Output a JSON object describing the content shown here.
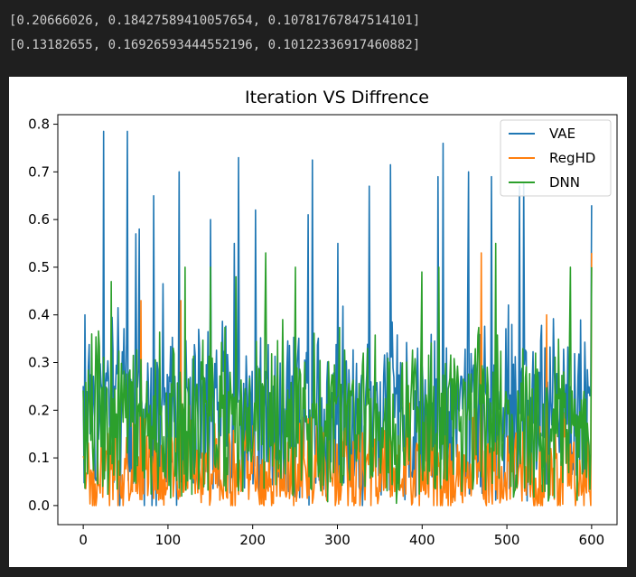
{
  "output": {
    "lines": [
      "[0.20666026, 0.18427589410057654, 0.10781767847514101]",
      "[0.13182655, 0.16926593444552196, 0.10122336917460882]"
    ]
  },
  "chart_data": {
    "type": "line",
    "title": "Iteration VS Diffrence",
    "xlabel": "",
    "ylabel": "",
    "xlim": [
      -30,
      630
    ],
    "ylim": [
      -0.04,
      0.82
    ],
    "x_ticks": [
      0,
      100,
      200,
      300,
      400,
      500,
      600
    ],
    "y_ticks": [
      0.0,
      0.1,
      0.2,
      0.3,
      0.4,
      0.5,
      0.6,
      0.7,
      0.8
    ],
    "legend_position": "top-right",
    "grid": false,
    "x": [
      0,
      600
    ],
    "n_points": 600,
    "series": [
      {
        "name": "VAE",
        "color": "#1f77b4",
        "peaks": [
          [
            2,
            0.4
          ],
          [
            24,
            0.785
          ],
          [
            52,
            0.785
          ],
          [
            62,
            0.57
          ],
          [
            66,
            0.58
          ],
          [
            83,
            0.65
          ],
          [
            113,
            0.7
          ],
          [
            150,
            0.6
          ],
          [
            178,
            0.55
          ],
          [
            183,
            0.73
          ],
          [
            203,
            0.62
          ],
          [
            265,
            0.61
          ],
          [
            270,
            0.725
          ],
          [
            300,
            0.55
          ],
          [
            338,
            0.67
          ],
          [
            363,
            0.715
          ],
          [
            419,
            0.69
          ],
          [
            425,
            0.76
          ],
          [
            455,
            0.7
          ],
          [
            482,
            0.69
          ],
          [
            515,
            0.67
          ],
          [
            520,
            0.675
          ],
          [
            600,
            0.63
          ]
        ],
        "base_mean": 0.22,
        "base_spread": 0.2
      },
      {
        "name": "RegHD",
        "color": "#ff7f0e",
        "peaks": [
          [
            68,
            0.43
          ],
          [
            115,
            0.43
          ],
          [
            470,
            0.53
          ],
          [
            547,
            0.4
          ],
          [
            600,
            0.53
          ]
        ],
        "base_mean": 0.08,
        "base_spread": 0.12
      },
      {
        "name": "DNN",
        "color": "#2ca02c",
        "peaks": [
          [
            10,
            0.36
          ],
          [
            33,
            0.47
          ],
          [
            120,
            0.5
          ],
          [
            150,
            0.5
          ],
          [
            180,
            0.48
          ],
          [
            215,
            0.53
          ],
          [
            250,
            0.5
          ],
          [
            400,
            0.49
          ],
          [
            420,
            0.5
          ],
          [
            487,
            0.55
          ],
          [
            575,
            0.5
          ],
          [
            600,
            0.5
          ]
        ],
        "base_mean": 0.2,
        "base_spread": 0.17
      }
    ]
  }
}
